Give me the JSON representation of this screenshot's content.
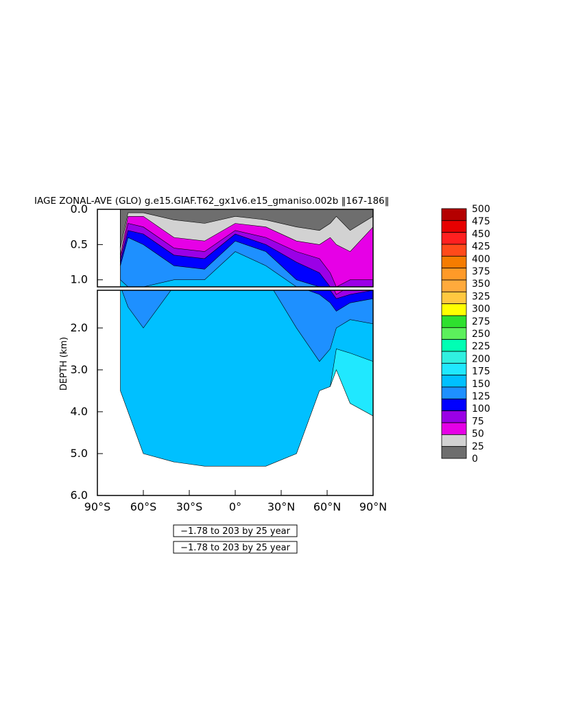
{
  "chart_data": {
    "type": "heatmap",
    "title": "IAGE ZONAL-AVE (GLO) g.e15.GIAF.T62_gx1v6.e15_gmaniso.002b ‖167-186‖",
    "ylabel": "DEPTH (km)",
    "xlabel": "",
    "x_ticks": [
      "90°S",
      "60°S",
      "30°S",
      "0°",
      "30°N",
      "60°N",
      "90°N"
    ],
    "x_range": [
      -90,
      90
    ],
    "y_ticks_upper": [
      "0.0",
      "0.5",
      "1.0"
    ],
    "y_ticks_lower": [
      "2.0",
      "3.0",
      "4.0",
      "5.0",
      "6.0"
    ],
    "y_range_upper": [
      0,
      1.1
    ],
    "y_range_lower": [
      1.1,
      6.0
    ],
    "y_reversed": true,
    "colorbar": {
      "labels": [
        "500",
        "475",
        "450",
        "425",
        "400",
        "375",
        "350",
        "325",
        "300",
        "275",
        "250",
        "225",
        "200",
        "175",
        "150",
        "125",
        "100",
        "75",
        "50",
        "25",
        "0"
      ],
      "colors": [
        "#b40000",
        "#e60000",
        "#ff2020",
        "#ff4a1a",
        "#f57c00",
        "#ff9a28",
        "#ffaa3c",
        "#ffc840",
        "#ffff00",
        "#2ee02e",
        "#5cf05c",
        "#00ffb4",
        "#30f0e0",
        "#20e8ff",
        "#00c0ff",
        "#1e90ff",
        "#0000ff",
        "#9b00e6",
        "#e600e6",
        "#d2d2d2",
        "#6e6e6e"
      ]
    },
    "contour_levels": [
      0,
      25,
      50,
      75,
      100,
      125,
      150,
      175,
      200,
      225,
      250,
      275,
      300,
      325,
      350,
      375,
      400,
      425,
      450,
      475,
      500
    ],
    "units": "year",
    "contour_info": [
      "−1.78 to 203 by 25 year",
      "−1.78 to 203 by 25 year"
    ],
    "layers": [
      {
        "name": "0-25",
        "color": "#6e6e6e",
        "depth_profile": [
          [
            -75,
            0.55
          ],
          [
            -70,
            0.05
          ],
          [
            -60,
            0.05
          ],
          [
            -40,
            0.15
          ],
          [
            -20,
            0.2
          ],
          [
            0,
            0.1
          ],
          [
            20,
            0.15
          ],
          [
            40,
            0.25
          ],
          [
            55,
            0.3
          ],
          [
            62,
            0.2
          ],
          [
            66,
            0.1
          ],
          [
            75,
            0.3
          ],
          [
            90,
            0.1
          ]
        ]
      },
      {
        "name": "25-50",
        "color": "#d2d2d2",
        "depth_profile": [
          [
            -75,
            0.65
          ],
          [
            -70,
            0.1
          ],
          [
            -60,
            0.1
          ],
          [
            -40,
            0.4
          ],
          [
            -20,
            0.45
          ],
          [
            0,
            0.2
          ],
          [
            20,
            0.25
          ],
          [
            40,
            0.45
          ],
          [
            55,
            0.5
          ],
          [
            62,
            0.4
          ],
          [
            66,
            0.5
          ],
          [
            75,
            0.6
          ],
          [
            90,
            0.25
          ]
        ]
      },
      {
        "name": "50-75",
        "color": "#e600e6",
        "depth_profile": [
          [
            -75,
            0.7
          ],
          [
            -70,
            0.2
          ],
          [
            -60,
            0.25
          ],
          [
            -40,
            0.55
          ],
          [
            -20,
            0.6
          ],
          [
            0,
            0.3
          ],
          [
            20,
            0.4
          ],
          [
            40,
            0.6
          ],
          [
            55,
            0.7
          ],
          [
            62,
            0.9
          ],
          [
            66,
            1.2
          ],
          [
            75,
            1.0
          ],
          [
            90,
            1.0
          ]
        ]
      },
      {
        "name": "75-100",
        "color": "#9b00e6",
        "depth_profile": [
          [
            -75,
            0.75
          ],
          [
            -70,
            0.3
          ],
          [
            -60,
            0.35
          ],
          [
            -40,
            0.65
          ],
          [
            -20,
            0.7
          ],
          [
            0,
            0.35
          ],
          [
            20,
            0.5
          ],
          [
            40,
            0.75
          ],
          [
            55,
            0.9
          ],
          [
            62,
            1.1
          ],
          [
            66,
            1.3
          ],
          [
            75,
            1.2
          ],
          [
            90,
            1.1
          ]
        ]
      },
      {
        "name": "100-125",
        "color": "#0000ff",
        "depth_profile": [
          [
            -75,
            0.8
          ],
          [
            -70,
            0.4
          ],
          [
            -60,
            0.5
          ],
          [
            -40,
            0.8
          ],
          [
            -20,
            0.85
          ],
          [
            0,
            0.45
          ],
          [
            20,
            0.6
          ],
          [
            40,
            1.0
          ],
          [
            55,
            1.2
          ],
          [
            62,
            1.4
          ],
          [
            66,
            1.6
          ],
          [
            75,
            1.4
          ],
          [
            90,
            1.3
          ]
        ]
      },
      {
        "name": "125-150",
        "color": "#1e90ff",
        "depth_profile": [
          [
            -75,
            1.0
          ],
          [
            -70,
            1.5
          ],
          [
            -60,
            2.0
          ],
          [
            -40,
            1.0
          ],
          [
            -20,
            1.0
          ],
          [
            0,
            0.6
          ],
          [
            20,
            0.8
          ],
          [
            40,
            2.0
          ],
          [
            55,
            2.8
          ],
          [
            62,
            2.5
          ],
          [
            66,
            2.0
          ],
          [
            75,
            1.8
          ],
          [
            90,
            1.9
          ]
        ]
      },
      {
        "name": "150-175",
        "color": "#00c0ff",
        "depth_profile": [
          [
            -75,
            3.5
          ],
          [
            -70,
            4.0
          ],
          [
            -60,
            5.0
          ],
          [
            -40,
            5.2
          ],
          [
            -20,
            5.3
          ],
          [
            0,
            5.3
          ],
          [
            20,
            5.3
          ],
          [
            40,
            5.0
          ],
          [
            55,
            3.5
          ],
          [
            62,
            3.4
          ],
          [
            66,
            2.5
          ],
          [
            75,
            2.6
          ],
          [
            90,
            2.8
          ]
        ]
      },
      {
        "name": "175-200",
        "color": "#20e8ff",
        "depth_profile": [
          [
            62,
            3.4
          ],
          [
            66,
            3.0
          ],
          [
            75,
            3.8
          ],
          [
            90,
            4.1
          ]
        ]
      }
    ]
  }
}
